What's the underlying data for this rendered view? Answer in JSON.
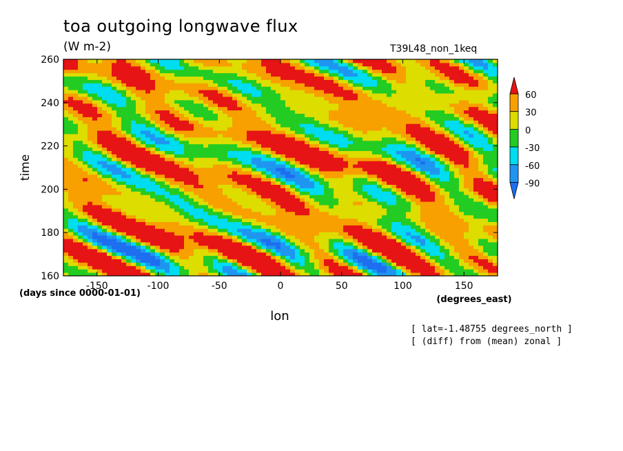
{
  "chart_data": {
    "type": "heatmap",
    "title": "toa outgoing longwave flux",
    "units": "(W m-2)",
    "run_label": "T39L48_non_1keq",
    "xlabel": "lon",
    "x_units": "(degrees_east)",
    "ylabel": "time",
    "y_units": "(days since 0000-01-01)",
    "xlim": [
      -177.5,
      177.5
    ],
    "ylim": [
      160,
      260
    ],
    "x_ticks": [
      -150,
      -100,
      -50,
      0,
      50,
      100,
      150
    ],
    "x_tick_labels": [
      "-150",
      "-100",
      "-50",
      "0",
      "50",
      "100",
      "150"
    ],
    "y_ticks": [
      160,
      180,
      200,
      220,
      240,
      260
    ],
    "y_tick_labels": [
      "160",
      "180",
      "200",
      "220",
      "240",
      "260"
    ],
    "colorbar": {
      "levels": [
        -90,
        -60,
        -30,
        0,
        30,
        60
      ],
      "labels": [
        "-90",
        "-60",
        "-30",
        "0",
        "30",
        "60"
      ],
      "colors": [
        "#1e6ef0",
        "#1e96f0",
        "#00dcf0",
        "#22cc22",
        "#dddd00",
        "#f7a000",
        "#e61414"
      ]
    },
    "annotations": [
      "[ lat=-1.48755 degrees_north ]",
      "[ (diff) from (mean) zonal ]"
    ],
    "grid": false
  }
}
